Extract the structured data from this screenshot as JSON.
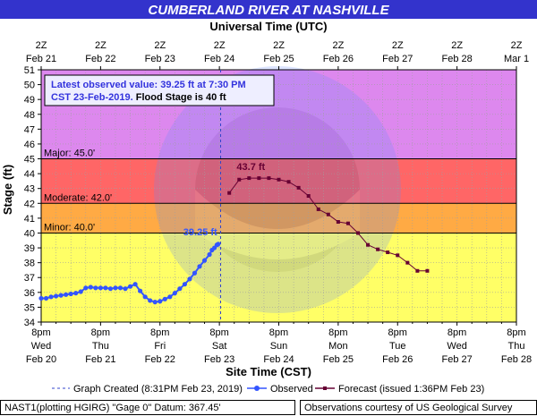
{
  "header": {
    "title": "CUMBERLAND RIVER AT NASHVILLE",
    "top_axis_title": "Universal Time (UTC)",
    "bottom_axis_title": "Site Time (CST)",
    "y_axis_title": "Stage (ft)"
  },
  "info_box": {
    "line1": "Latest observed value: 39.25 ft at 7:30 PM",
    "line2_blue": "CST 23-Feb-2019.",
    "line2_black": " Flood Stage is 40 ft"
  },
  "legend": {
    "graph_created": "Graph Created (8:31PM Feb 23, 2019)",
    "observed": "Observed",
    "forecast": "Forecast (issued 1:36PM Feb 23)"
  },
  "footer": {
    "left": "NAST1(plotting HGIRG) \"Gage 0\" Datum: 367.45'",
    "right": "Observations courtesy of US Geological Survey"
  },
  "colors": {
    "title_bar": "#3333cc",
    "major_zone": "#dd88ee",
    "moderate_zone": "#ff6666",
    "minor_zone": "#ffaa44",
    "action_zone": "#ffff66",
    "observed": "#3355ff",
    "forecast": "#660033"
  },
  "chart_data": {
    "type": "line",
    "ylim": [
      34,
      51
    ],
    "y_ticks": [
      34,
      35,
      36,
      37,
      38,
      39,
      40,
      41,
      42,
      43,
      44,
      45,
      46,
      47,
      48,
      49,
      50,
      51
    ],
    "x_unit": "hours after 8pm Wed Feb 20 (CST)",
    "xlim": [
      0,
      192
    ],
    "x_ticks_bottom": [
      {
        "x": 0,
        "line1": "8pm",
        "line2": "Wed",
        "line3": "Feb 20"
      },
      {
        "x": 24,
        "line1": "8pm",
        "line2": "Thu",
        "line3": "Feb 21"
      },
      {
        "x": 48,
        "line1": "8pm",
        "line2": "Fri",
        "line3": "Feb 22"
      },
      {
        "x": 72,
        "line1": "8pm",
        "line2": "Sat",
        "line3": "Feb 23"
      },
      {
        "x": 96,
        "line1": "8pm",
        "line2": "Sun",
        "line3": "Feb 24"
      },
      {
        "x": 120,
        "line1": "8pm",
        "line2": "Mon",
        "line3": "Feb 25"
      },
      {
        "x": 144,
        "line1": "8pm",
        "line2": "Tue",
        "line3": "Feb 26"
      },
      {
        "x": 168,
        "line1": "8pm",
        "line2": "Wed",
        "line3": "Feb 27"
      },
      {
        "x": 192,
        "line1": "8pm",
        "line2": "Thu",
        "line3": "Feb 28"
      }
    ],
    "x_ticks_top": [
      {
        "x": 0,
        "line1": "2Z",
        "line2": "Feb 21"
      },
      {
        "x": 24,
        "line1": "2Z",
        "line2": "Feb 22"
      },
      {
        "x": 48,
        "line1": "2Z",
        "line2": "Feb 23"
      },
      {
        "x": 72,
        "line1": "2Z",
        "line2": "Feb 24"
      },
      {
        "x": 96,
        "line1": "2Z",
        "line2": "Feb 25"
      },
      {
        "x": 120,
        "line1": "2Z",
        "line2": "Feb 26"
      },
      {
        "x": 144,
        "line1": "2Z",
        "line2": "Feb 27"
      },
      {
        "x": 168,
        "line1": "2Z",
        "line2": "Feb 28"
      },
      {
        "x": 192,
        "line1": "2Z",
        "line2": "Mar 1"
      }
    ],
    "flood_categories": [
      {
        "name": "Major",
        "label": "Major: 45.0'",
        "stage": 45.0
      },
      {
        "name": "Moderate",
        "label": "Moderate: 42.0'",
        "stage": 42.0
      },
      {
        "name": "Minor",
        "label": "Minor: 40.0'",
        "stage": 40.0
      }
    ],
    "graph_created_x": 72.5,
    "observed": {
      "name": "Observed",
      "x": [
        0,
        2,
        4,
        6,
        8,
        10,
        12,
        14,
        16,
        18,
        20,
        22,
        24,
        26,
        28,
        30,
        32,
        34,
        36,
        38,
        40,
        42,
        44,
        46,
        48,
        50,
        52,
        54,
        56,
        58,
        60,
        62,
        64,
        66,
        68,
        69,
        70,
        71,
        71.5
      ],
      "y": [
        35.6,
        35.6,
        35.7,
        35.75,
        35.8,
        35.85,
        35.9,
        35.95,
        36.05,
        36.3,
        36.35,
        36.3,
        36.3,
        36.3,
        36.25,
        36.3,
        36.3,
        36.25,
        36.4,
        36.55,
        36.1,
        35.7,
        35.45,
        35.35,
        35.4,
        35.55,
        35.7,
        35.95,
        36.25,
        36.55,
        36.9,
        37.3,
        37.75,
        38.15,
        38.55,
        38.85,
        39.0,
        39.2,
        39.25
      ]
    },
    "observed_label": "39.25 ft",
    "forecast": {
      "name": "Forecast",
      "x": [
        76,
        80,
        84,
        88,
        92,
        96,
        100,
        104,
        108,
        112,
        116,
        120,
        124,
        128,
        132,
        136,
        140,
        144,
        148,
        152,
        156
      ],
      "y": [
        42.7,
        43.6,
        43.7,
        43.7,
        43.7,
        43.6,
        43.45,
        43.05,
        42.5,
        41.6,
        41.25,
        40.75,
        40.65,
        40.0,
        39.2,
        38.9,
        38.7,
        38.5,
        38.0,
        37.45,
        37.45
      ]
    },
    "forecast_label": "43.7 ft",
    "grid": true,
    "xlabel": "Site Time (CST)",
    "ylabel": "Stage (ft)",
    "x2label": "Universal Time (UTC)"
  }
}
